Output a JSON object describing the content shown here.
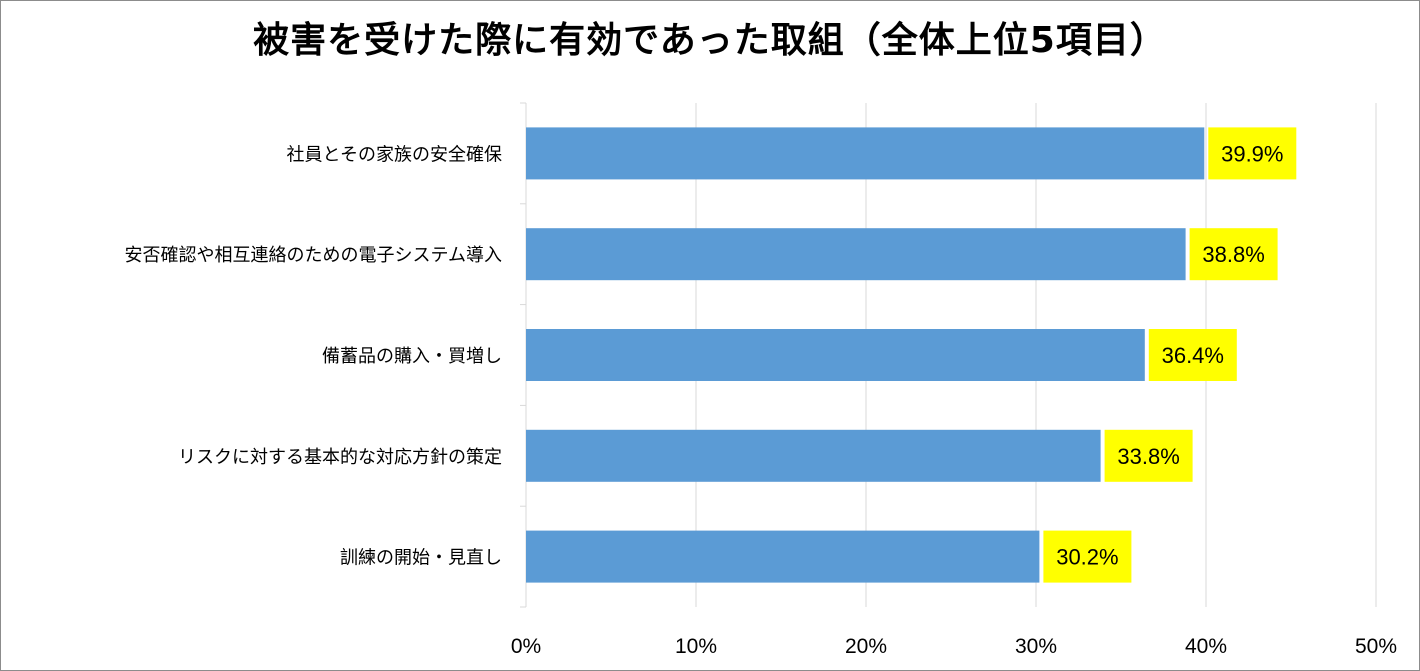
{
  "chart_data": {
    "type": "bar",
    "orientation": "horizontal",
    "title": "被害を受けた際に有効であった取組（全体上位5項目）",
    "categories": [
      "社員とその家族の安全確保",
      "安否確認や相互連絡のための電子システム導入",
      "備蓄品の購入・買増し",
      "リスクに対する基本的な対応方針の策定",
      "訓練の開始・見直し"
    ],
    "values": [
      39.9,
      38.8,
      36.4,
      33.8,
      30.2
    ],
    "data_labels": [
      "39.9%",
      "38.8%",
      "36.4%",
      "33.8%",
      "30.2%"
    ],
    "xlim": [
      0,
      50
    ],
    "x_ticks": [
      0,
      10,
      20,
      30,
      40,
      50
    ],
    "x_tick_labels": [
      "0%",
      "10%",
      "20%",
      "30%",
      "40%",
      "50%"
    ],
    "xlabel": "",
    "ylabel": "",
    "grid": true,
    "legend": "none",
    "colors": {
      "bar": "#5b9bd5",
      "label_background": "#ffff00",
      "grid": "#d9d9d9",
      "axis": "#d9d9d9"
    }
  }
}
